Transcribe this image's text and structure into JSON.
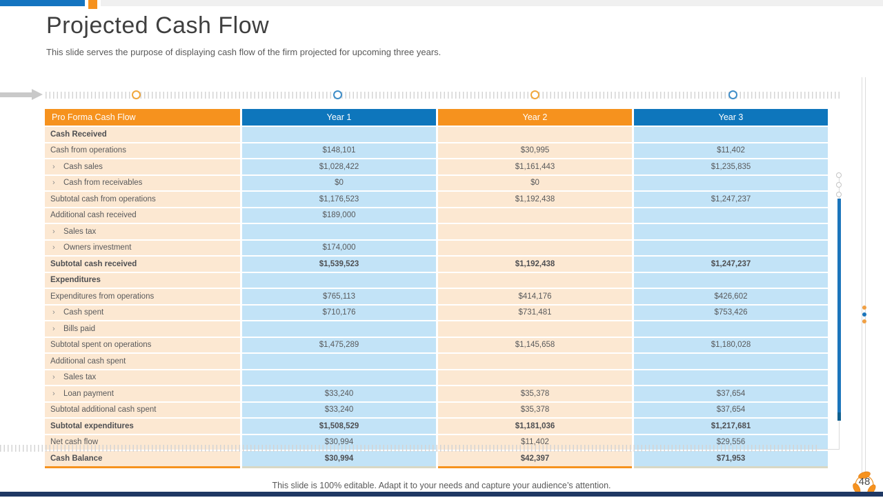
{
  "header": {
    "title": "Projected Cash Flow",
    "subtitle": "This slide serves the purpose of displaying cash flow of the firm projected for upcoming three years."
  },
  "timeline": {
    "marker_colors": [
      "orange",
      "blue",
      "orange",
      "blue"
    ]
  },
  "table": {
    "columns": [
      "Pro Forma Cash Flow",
      "Year 1",
      "Year 2",
      "Year 3"
    ],
    "rows": [
      {
        "label": "Cash Received",
        "bold": true,
        "indent": false,
        "values": [
          "",
          "",
          ""
        ]
      },
      {
        "label": "Cash from operations",
        "bold": false,
        "indent": false,
        "values": [
          "$148,101",
          "$30,995",
          "$11,402"
        ]
      },
      {
        "label": "Cash sales",
        "bold": false,
        "indent": true,
        "values": [
          "$1,028,422",
          "$1,161,443",
          "$1,235,835"
        ]
      },
      {
        "label": "Cash from receivables",
        "bold": false,
        "indent": true,
        "values": [
          "$0",
          "$0",
          ""
        ]
      },
      {
        "label": "Subtotal cash from operations",
        "bold": false,
        "indent": false,
        "values": [
          "$1,176,523",
          "$1,192,438",
          "$1,247,237"
        ]
      },
      {
        "label": "Additional cash received",
        "bold": false,
        "indent": false,
        "values": [
          "$189,000",
          "",
          ""
        ]
      },
      {
        "label": "Sales tax",
        "bold": false,
        "indent": true,
        "values": [
          "",
          "",
          ""
        ]
      },
      {
        "label": "Owners investment",
        "bold": false,
        "indent": true,
        "values": [
          "$174,000",
          "",
          ""
        ]
      },
      {
        "label": "Subtotal cash received",
        "bold": true,
        "indent": false,
        "values": [
          "$1,539,523",
          "$1,192,438",
          "$1,247,237"
        ]
      },
      {
        "label": "Expenditures",
        "bold": true,
        "indent": false,
        "values": [
          "",
          "",
          ""
        ]
      },
      {
        "label": "Expenditures from operations",
        "bold": false,
        "indent": false,
        "values": [
          "$765,113",
          "$414,176",
          "$426,602"
        ]
      },
      {
        "label": "Cash spent",
        "bold": false,
        "indent": true,
        "values": [
          "$710,176",
          "$731,481",
          "$753,426"
        ]
      },
      {
        "label": "Bills paid",
        "bold": false,
        "indent": true,
        "values": [
          "",
          "",
          ""
        ]
      },
      {
        "label": "Subtotal spent on operations",
        "bold": false,
        "indent": false,
        "values": [
          "$1,475,289",
          "$1,145,658",
          "$1,180,028"
        ]
      },
      {
        "label": "Additional cash spent",
        "bold": false,
        "indent": false,
        "values": [
          "",
          "",
          ""
        ]
      },
      {
        "label": "Sales tax",
        "bold": false,
        "indent": true,
        "values": [
          "",
          "",
          ""
        ]
      },
      {
        "label": "Loan payment",
        "bold": false,
        "indent": true,
        "values": [
          "$33,240",
          "$35,378",
          "$37,654"
        ]
      },
      {
        "label": "Subtotal additional cash spent",
        "bold": false,
        "indent": false,
        "values": [
          "$33,240",
          "$35,378",
          "$37,654"
        ]
      },
      {
        "label": "Subtotal expenditures",
        "bold": true,
        "indent": false,
        "values": [
          "$1,508,529",
          "$1,181,036",
          "$1,217,681"
        ]
      },
      {
        "label": "Net cash flow",
        "bold": false,
        "indent": false,
        "values": [
          "$30,994",
          "$11,402",
          "$29,556"
        ]
      },
      {
        "label": "Cash Balance",
        "bold": true,
        "indent": false,
        "values": [
          "$30,994",
          "$42,397",
          "$71,953"
        ]
      }
    ]
  },
  "footer": {
    "note": "This slide is 100% editable. Adapt it to your needs and capture your audience’s attention.",
    "page_number": "48"
  },
  "colors": {
    "orange": "#F6921E",
    "header_blue": "#0E76BC",
    "cell_peach": "#FCE8D2",
    "cell_blue": "#C2E3F7",
    "bottom_bar_navy": "#1F3864",
    "top_bar_blue": "#1474C0",
    "top_bar_gray": "#F0F0F0"
  }
}
